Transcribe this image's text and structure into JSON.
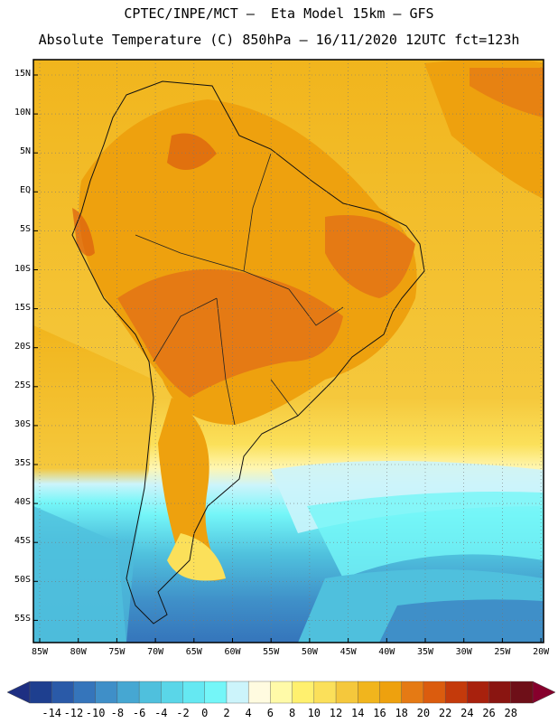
{
  "title": {
    "line1": "CPTEC/INPE/MCT –  Eta Model 15km – GFS",
    "line2": "Absolute Temperature (C) 850hPa – 16/11/2020 12UTC fct=123h"
  },
  "map": {
    "region": "South America",
    "lat_labels": [
      "15N",
      "10N",
      "5N",
      "EQ",
      "5S",
      "10S",
      "15S",
      "20S",
      "25S",
      "30S",
      "35S",
      "40S",
      "45S",
      "50S",
      "55S"
    ],
    "lon_labels": [
      "85W",
      "80W",
      "75W",
      "70W",
      "65W",
      "60W",
      "55W",
      "50W",
      "45W",
      "40W",
      "35W",
      "30W",
      "25W",
      "20W"
    ]
  },
  "colorbar": {
    "labels": [
      "-14",
      "-12",
      "-10",
      "-8",
      "-6",
      "-4",
      "-2",
      "0",
      "2",
      "4",
      "6",
      "8",
      "10",
      "12",
      "14",
      "16",
      "18",
      "20",
      "22",
      "24",
      "26",
      "28"
    ],
    "colors": [
      "#1e3f8f",
      "#2a5aa8",
      "#3575bb",
      "#3f8fc8",
      "#46a7d2",
      "#4fc0dd",
      "#5ad6e8",
      "#65e8f2",
      "#74f6f8",
      "#ccf4fb",
      "#fffbe0",
      "#fffaa8",
      "#fff06e",
      "#fbe05a",
      "#f5c83c",
      "#f1b51d",
      "#eea10e",
      "#e57a14",
      "#db5c0e",
      "#c43a0b",
      "#a8210d",
      "#8a1511",
      "#6e0f18"
    ],
    "over_color": "#86002c",
    "under_color": "#1e2f82"
  }
}
